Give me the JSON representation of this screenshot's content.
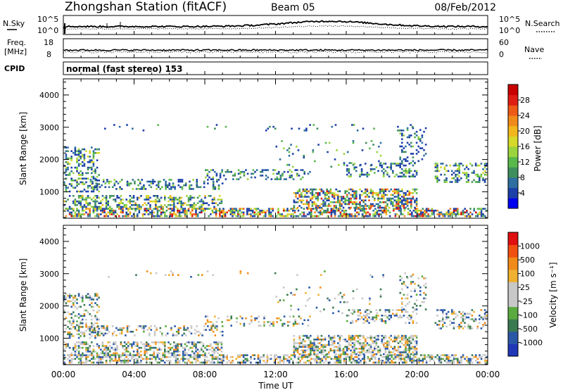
{
  "header": {
    "station": "Zhongshan Station (fitACF)",
    "beam": "Beam 05",
    "date": "08/Feb/2012"
  },
  "noise_panel": {
    "left_label": "N.Sky",
    "right_label": "N.Search",
    "left_ticks": [
      "10^5",
      "10^0"
    ],
    "right_ticks": [
      "10^5",
      "10^0"
    ]
  },
  "freq_panel": {
    "left_label_1": "Freq.",
    "left_label_2": "[MHz]",
    "right_label": "Nave",
    "left_ticks": [
      "18",
      "8"
    ],
    "right_ticks": [
      "60",
      "0"
    ]
  },
  "cpid": {
    "label": "CPID",
    "mode_text": "normal (fast stereo) 153"
  },
  "xaxis": {
    "label": "Time UT",
    "ticks": [
      "00:00",
      "04:00",
      "08:00",
      "12:00",
      "16:00",
      "20:00",
      "00:00"
    ]
  },
  "chart_data": [
    {
      "type": "heatmap",
      "title": "Power",
      "xlabel": "Time UT",
      "ylabel": "Slant Range [km]",
      "ylim": [
        180,
        4500
      ],
      "yticks": [
        "1000",
        "2000",
        "3000",
        "4000"
      ],
      "xlim_hours": [
        0,
        24
      ],
      "colorbar": {
        "label": "Power [dB]",
        "ticks": [
          "4",
          "8",
          "12",
          "16",
          "20",
          "24",
          "28"
        ],
        "colors": [
          "#0000f0",
          "#1c3fa8",
          "#2e6ea0",
          "#3f8f5c",
          "#58b84a",
          "#9bd43c",
          "#d6d92a",
          "#f2b61d",
          "#f08a1a",
          "#ec5a16",
          "#e01d12",
          "#c80000"
        ]
      }
    },
    {
      "type": "heatmap",
      "title": "Velocity",
      "xlabel": "Time UT",
      "ylabel": "Slant Range [km]",
      "ylim": [
        180,
        4500
      ],
      "yticks": [
        "1000",
        "2000",
        "3000",
        "4000"
      ],
      "xlim_hours": [
        0,
        24
      ],
      "colorbar": {
        "label": "Velocity [m s⁻¹]",
        "ticks": [
          "1000",
          "500",
          "100",
          "25",
          "-25",
          "-100",
          "-500",
          "-1000"
        ],
        "colors": [
          "#2038b8",
          "#2a58a8",
          "#3a7a50",
          "#5aaa40",
          "#c8c8c8",
          "#c8c8c8",
          "#f0b030",
          "#f08a1a",
          "#f05010",
          "#e01010"
        ]
      }
    }
  ]
}
